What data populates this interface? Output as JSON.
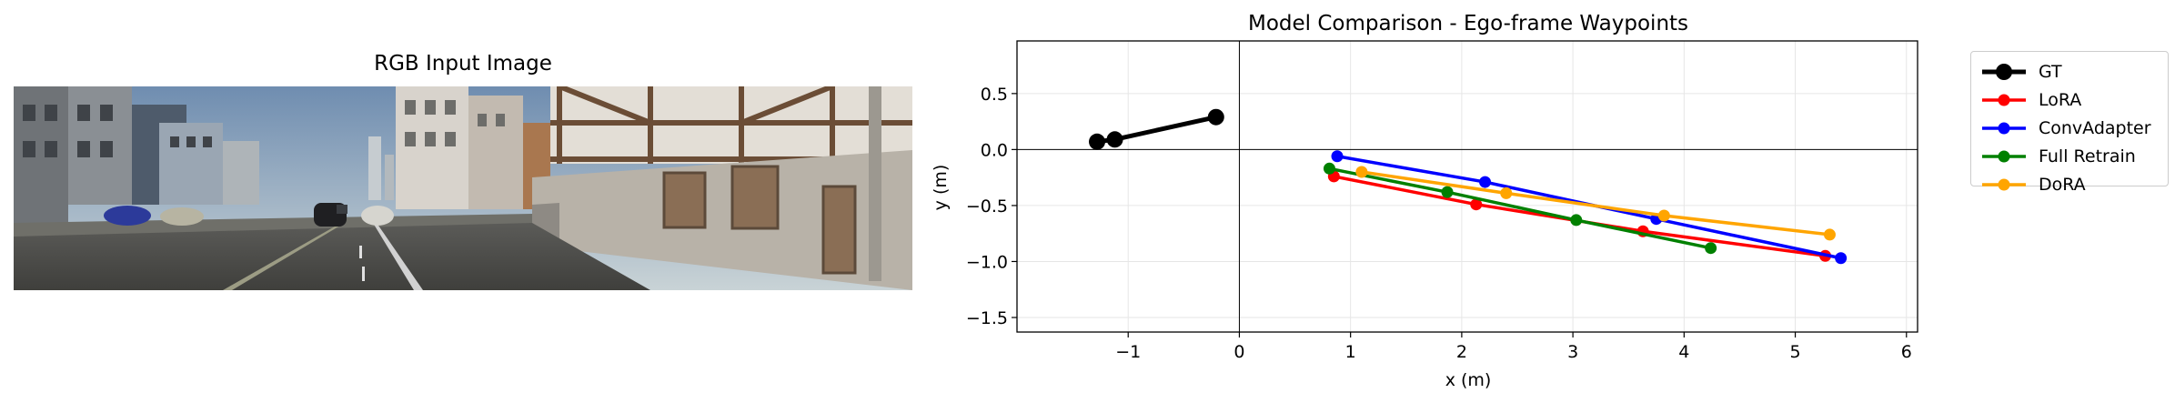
{
  "left_panel": {
    "title": "RGB Input Image"
  },
  "chart_data": {
    "type": "line",
    "title": "Model Comparison - Ego-frame Waypoints",
    "xlabel": "x (m)",
    "ylabel": "y (m)",
    "xlim": [
      -2.0,
      6.1
    ],
    "ylim": [
      -1.63,
      0.97
    ],
    "xticks": [
      -1,
      0,
      1,
      2,
      3,
      4,
      5,
      6
    ],
    "xtick_labels": [
      "−1",
      "0",
      "1",
      "2",
      "3",
      "4",
      "5",
      "6"
    ],
    "yticks": [
      0.5,
      0.0,
      -0.5,
      -1.0,
      -1.5
    ],
    "ytick_labels": [
      "0.5",
      "0.0",
      "−0.5",
      "−1.0",
      "−1.5"
    ],
    "grid": true,
    "legend_position": "outside-right",
    "series": [
      {
        "name": "GT",
        "color": "#000000",
        "x": [
          -1.28,
          -1.12,
          -0.21
        ],
        "y": [
          0.07,
          0.09,
          0.29
        ]
      },
      {
        "name": "LoRA",
        "color": "#ff0000",
        "x": [
          0.85,
          2.13,
          3.63,
          5.27
        ],
        "y": [
          -0.24,
          -0.49,
          -0.73,
          -0.95
        ]
      },
      {
        "name": "ConvAdapter",
        "color": "#0000ff",
        "x": [
          0.88,
          2.21,
          3.75,
          5.41
        ],
        "y": [
          -0.06,
          -0.29,
          -0.62,
          -0.97
        ]
      },
      {
        "name": "Full Retrain",
        "color": "#008000",
        "x": [
          0.81,
          1.87,
          3.03,
          4.24
        ],
        "y": [
          -0.17,
          -0.38,
          -0.63,
          -0.88
        ]
      },
      {
        "name": "DoRA",
        "color": "#ffa500",
        "x": [
          1.1,
          2.4,
          3.82,
          5.31
        ],
        "y": [
          -0.2,
          -0.39,
          -0.59,
          -0.76
        ]
      }
    ]
  }
}
